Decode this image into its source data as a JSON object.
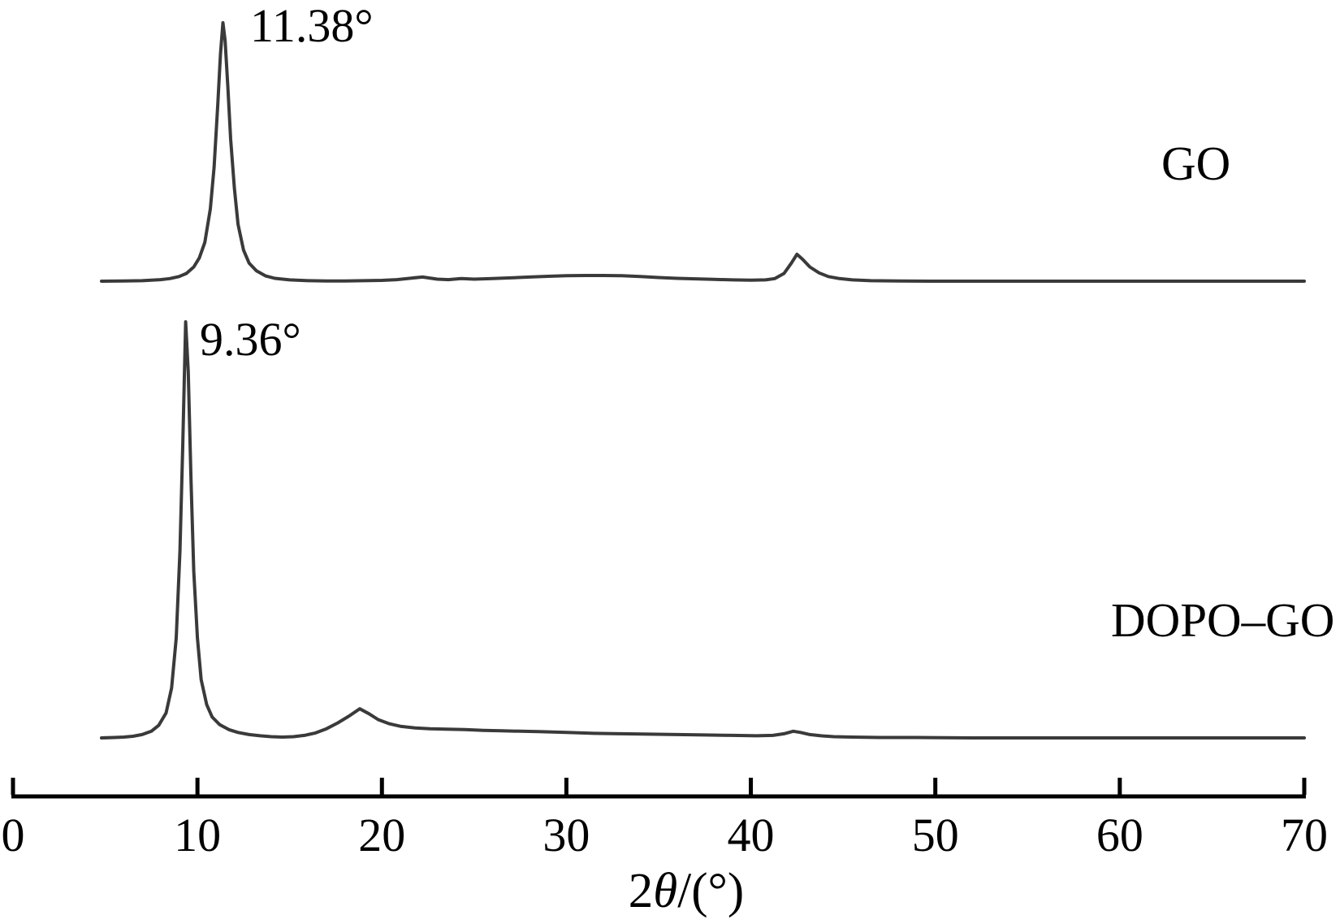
{
  "figure": {
    "background": "#ffffff",
    "curve_color": "#3a3a3a",
    "axis_color": "#000000",
    "text_color": "#000000"
  },
  "chart_data": {
    "type": "line",
    "title": "",
    "xlabel": "2θ/(°)",
    "ylabel": "",
    "grid": false,
    "legend_position": "inline-right-of-curves",
    "x_axis": {
      "min": 0,
      "max": 70,
      "tick_interval": 10,
      "ticks": [
        0,
        10,
        20,
        30,
        40,
        50,
        60,
        70
      ]
    },
    "xlabel_parts": {
      "prefix": "2",
      "theta": "θ",
      "suffix": "/(°)"
    },
    "series": [
      {
        "name": "GO",
        "peak_annotation": "11.38°",
        "peak_2theta": 11.38,
        "secondary_peak_2theta": 42.5,
        "points": [
          [
            4.8,
            0
          ],
          [
            6,
            0.001
          ],
          [
            7,
            0.002
          ],
          [
            7.5,
            0.004
          ],
          [
            8,
            0.006
          ],
          [
            8.5,
            0.01
          ],
          [
            9,
            0.018
          ],
          [
            9.4,
            0.03
          ],
          [
            9.8,
            0.055
          ],
          [
            10.1,
            0.09
          ],
          [
            10.4,
            0.15
          ],
          [
            10.7,
            0.28
          ],
          [
            10.9,
            0.44
          ],
          [
            11.1,
            0.68
          ],
          [
            11.25,
            0.88
          ],
          [
            11.38,
            1
          ],
          [
            11.5,
            0.93
          ],
          [
            11.65,
            0.75
          ],
          [
            11.8,
            0.55
          ],
          [
            12,
            0.36
          ],
          [
            12.2,
            0.22
          ],
          [
            12.5,
            0.12
          ],
          [
            12.8,
            0.07
          ],
          [
            13.2,
            0.04
          ],
          [
            13.7,
            0.02
          ],
          [
            14.2,
            0.011
          ],
          [
            15,
            0.005
          ],
          [
            16,
            0.002
          ],
          [
            17,
            0.001
          ],
          [
            18,
            0.001
          ],
          [
            19,
            0.002
          ],
          [
            20,
            0.003
          ],
          [
            20.8,
            0.006
          ],
          [
            21.6,
            0.012
          ],
          [
            22.2,
            0.016
          ],
          [
            23,
            0.008
          ],
          [
            23.6,
            0.006
          ],
          [
            24.3,
            0.01
          ],
          [
            25,
            0.008
          ],
          [
            26,
            0.01
          ],
          [
            27,
            0.013
          ],
          [
            28,
            0.016
          ],
          [
            29,
            0.019
          ],
          [
            30,
            0.021
          ],
          [
            31,
            0.022
          ],
          [
            32,
            0.022
          ],
          [
            33,
            0.021
          ],
          [
            34,
            0.018
          ],
          [
            35,
            0.014
          ],
          [
            36,
            0.011
          ],
          [
            37,
            0.009
          ],
          [
            38,
            0.007
          ],
          [
            39,
            0.005
          ],
          [
            40,
            0.004
          ],
          [
            40.8,
            0.005
          ],
          [
            41.3,
            0.01
          ],
          [
            41.8,
            0.03
          ],
          [
            42.2,
            0.07
          ],
          [
            42.5,
            0.104
          ],
          [
            42.8,
            0.085
          ],
          [
            43.2,
            0.055
          ],
          [
            43.7,
            0.032
          ],
          [
            44.2,
            0.018
          ],
          [
            44.8,
            0.01
          ],
          [
            45.5,
            0.005
          ],
          [
            46.5,
            0.002
          ],
          [
            48,
            0.001
          ],
          [
            50,
            0
          ],
          [
            55,
            0
          ],
          [
            60,
            0
          ],
          [
            65,
            0
          ],
          [
            70,
            0
          ]
        ]
      },
      {
        "name": "DOPO–GO",
        "peak_annotation": "9.36°",
        "peak_2theta": 9.36,
        "secondary_peak_2theta": 18.8,
        "points": [
          [
            4.8,
            0
          ],
          [
            5.5,
            0.001
          ],
          [
            6,
            0.002
          ],
          [
            6.5,
            0.004
          ],
          [
            7,
            0.008
          ],
          [
            7.5,
            0.016
          ],
          [
            7.9,
            0.03
          ],
          [
            8.3,
            0.06
          ],
          [
            8.6,
            0.12
          ],
          [
            8.85,
            0.24
          ],
          [
            9.05,
            0.45
          ],
          [
            9.2,
            0.7
          ],
          [
            9.36,
            1
          ],
          [
            9.5,
            0.88
          ],
          [
            9.65,
            0.62
          ],
          [
            9.8,
            0.4
          ],
          [
            10,
            0.24
          ],
          [
            10.2,
            0.14
          ],
          [
            10.5,
            0.08
          ],
          [
            10.8,
            0.05
          ],
          [
            11.2,
            0.032
          ],
          [
            11.7,
            0.02
          ],
          [
            12.2,
            0.013
          ],
          [
            12.8,
            0.008
          ],
          [
            13.4,
            0.005
          ],
          [
            14,
            0.003
          ],
          [
            14.6,
            0.002
          ],
          [
            15.2,
            0.003
          ],
          [
            15.8,
            0.006
          ],
          [
            16.4,
            0.012
          ],
          [
            17,
            0.022
          ],
          [
            17.6,
            0.036
          ],
          [
            18.2,
            0.052
          ],
          [
            18.8,
            0.07
          ],
          [
            19.3,
            0.058
          ],
          [
            19.8,
            0.044
          ],
          [
            20.4,
            0.034
          ],
          [
            21,
            0.028
          ],
          [
            21.8,
            0.024
          ],
          [
            22.6,
            0.022
          ],
          [
            23.5,
            0.021
          ],
          [
            24.5,
            0.02
          ],
          [
            25.5,
            0.018
          ],
          [
            26.5,
            0.017
          ],
          [
            27.5,
            0.016
          ],
          [
            28.5,
            0.015
          ],
          [
            30,
            0.013
          ],
          [
            31.5,
            0.011
          ],
          [
            33,
            0.01
          ],
          [
            34.5,
            0.009
          ],
          [
            36,
            0.008
          ],
          [
            37.5,
            0.007
          ],
          [
            39,
            0.006
          ],
          [
            40.3,
            0.005
          ],
          [
            41.2,
            0.006
          ],
          [
            41.8,
            0.01
          ],
          [
            42.3,
            0.016
          ],
          [
            42.7,
            0.013
          ],
          [
            43.2,
            0.008
          ],
          [
            43.8,
            0.005
          ],
          [
            44.5,
            0.003
          ],
          [
            45.5,
            0.002
          ],
          [
            47,
            0.001
          ],
          [
            49,
            0.001
          ],
          [
            52,
            0
          ],
          [
            56,
            0
          ],
          [
            60,
            0
          ],
          [
            65,
            0
          ],
          [
            70,
            0
          ]
        ]
      }
    ]
  }
}
